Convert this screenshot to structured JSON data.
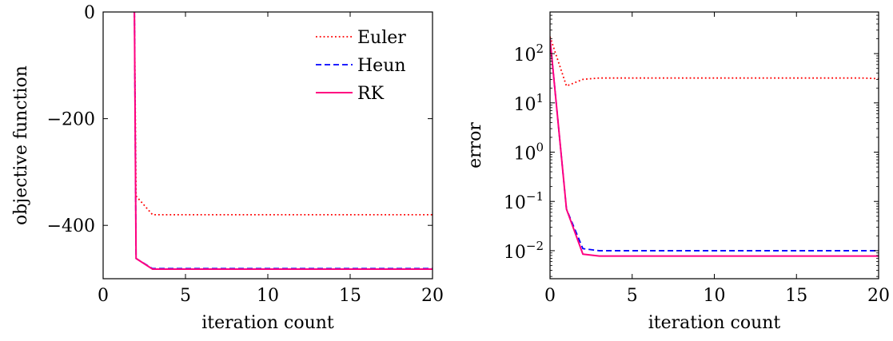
{
  "chart_data": [
    {
      "type": "line",
      "xlabel": "iteration count",
      "ylabel": "objective function",
      "xlim": [
        0,
        20
      ],
      "ylim": [
        -500,
        0
      ],
      "xticks": [
        0,
        5,
        10,
        15,
        20
      ],
      "yticks": [
        0,
        -200,
        -400
      ],
      "ytick_labels": [
        "0",
        "−200",
        "−400"
      ],
      "legend_position": "top-right",
      "grid": false,
      "series": [
        {
          "name": "Euler",
          "color": "#ff0000",
          "style": "dotted",
          "x": [
            1.9,
            2,
            3,
            4,
            5,
            6,
            7,
            8,
            9,
            10,
            11,
            12,
            13,
            14,
            15,
            16,
            17,
            18,
            19,
            20
          ],
          "y": [
            0,
            -345,
            -380,
            -380,
            -380,
            -380,
            -380,
            -380,
            -380,
            -380,
            -380,
            -380,
            -380,
            -380,
            -380,
            -380,
            -380,
            -380,
            -380,
            -380
          ]
        },
        {
          "name": "Heun",
          "color": "#0000ff",
          "style": "dashed",
          "x": [
            1.9,
            2,
            3,
            4,
            5,
            6,
            7,
            8,
            9,
            10,
            11,
            12,
            13,
            14,
            15,
            16,
            17,
            18,
            19,
            20
          ],
          "y": [
            0,
            -462,
            -481,
            -481,
            -481,
            -481,
            -481,
            -481,
            -481,
            -481,
            -481,
            -481,
            -481,
            -481,
            -481,
            -481,
            -481,
            -481,
            -481,
            -481
          ]
        },
        {
          "name": "RK",
          "color": "#ff0080",
          "style": "solid",
          "x": [
            1.9,
            2,
            3,
            4,
            5,
            6,
            7,
            8,
            9,
            10,
            11,
            12,
            13,
            14,
            15,
            16,
            17,
            18,
            19,
            20
          ],
          "y": [
            0,
            -462,
            -482,
            -482,
            -482,
            -482,
            -482,
            -482,
            -482,
            -482,
            -482,
            -482,
            -482,
            -482,
            -482,
            -482,
            -482,
            -482,
            -482,
            -482
          ]
        }
      ]
    },
    {
      "type": "line",
      "xlabel": "iteration count",
      "ylabel": "error",
      "xlim": [
        0,
        20
      ],
      "ylim": [
        0.0027,
        700
      ],
      "yscale": "log",
      "xticks": [
        0,
        5,
        10,
        15,
        20
      ],
      "ytick_exponents": [
        2,
        1,
        0,
        -1,
        -2
      ],
      "ytick_labels": [
        "10^2",
        "10^1",
        "10^0",
        "10^−1",
        "10^−2"
      ],
      "grid": false,
      "series": [
        {
          "name": "Euler",
          "color": "#ff0000",
          "style": "dotted",
          "x": [
            0,
            1,
            2,
            3,
            4,
            5,
            6,
            7,
            8,
            9,
            10,
            11,
            12,
            13,
            14,
            15,
            16,
            17,
            18,
            19,
            20
          ],
          "y": [
            220,
            22,
            30,
            32,
            32,
            32,
            32,
            32,
            32,
            32,
            32,
            32,
            32,
            32,
            32,
            32,
            32,
            32,
            32,
            32,
            31
          ]
        },
        {
          "name": "Heun",
          "color": "#0000ff",
          "style": "dashed",
          "x": [
            0,
            1,
            2,
            3,
            4,
            5,
            6,
            7,
            8,
            9,
            10,
            11,
            12,
            13,
            14,
            15,
            16,
            17,
            18,
            19,
            20
          ],
          "y": [
            200,
            0.07,
            0.011,
            0.01,
            0.01,
            0.01,
            0.01,
            0.01,
            0.01,
            0.01,
            0.01,
            0.01,
            0.01,
            0.01,
            0.01,
            0.01,
            0.01,
            0.01,
            0.01,
            0.01,
            0.01
          ]
        },
        {
          "name": "RK",
          "color": "#ff0080",
          "style": "solid",
          "x": [
            0,
            1,
            2,
            3,
            4,
            5,
            6,
            7,
            8,
            9,
            10,
            11,
            12,
            13,
            14,
            15,
            16,
            17,
            18,
            19,
            20
          ],
          "y": [
            200,
            0.07,
            0.0085,
            0.0078,
            0.0078,
            0.0078,
            0.0078,
            0.0078,
            0.0078,
            0.0078,
            0.0078,
            0.0078,
            0.0078,
            0.0078,
            0.0078,
            0.0078,
            0.0078,
            0.0078,
            0.0078,
            0.0078,
            0.0078
          ]
        }
      ]
    }
  ]
}
